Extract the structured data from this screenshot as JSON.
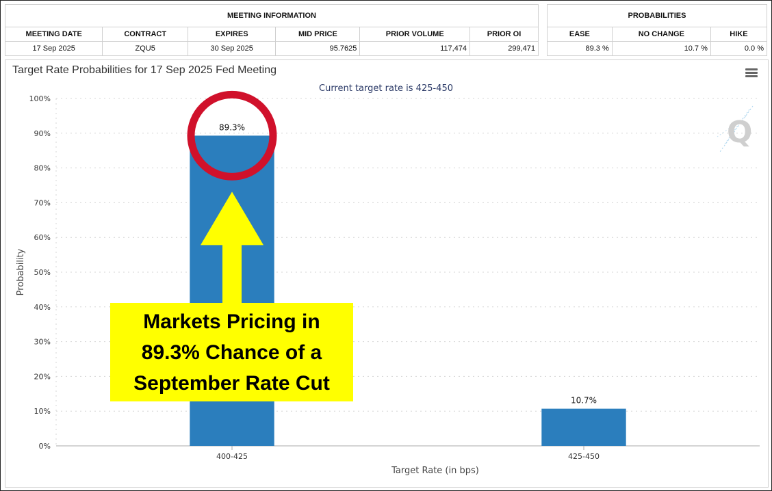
{
  "meeting_info": {
    "header": "MEETING INFORMATION",
    "columns": [
      "MEETING DATE",
      "CONTRACT",
      "EXPIRES",
      "MID PRICE",
      "PRIOR VOLUME",
      "PRIOR OI"
    ],
    "row": [
      "17 Sep 2025",
      "ZQU5",
      "30 Sep 2025",
      "95.7625",
      "117,474",
      "299,471"
    ]
  },
  "probabilities": {
    "header": "PROBABILITIES",
    "columns": [
      "EASE",
      "NO CHANGE",
      "HIKE"
    ],
    "row": [
      "89.3 %",
      "10.7 %",
      "0.0 %"
    ]
  },
  "chart": {
    "menu_icon": "hamburger-menu-icon",
    "logo_icon": "q-logo-icon",
    "bar_color": "#2b7ebd",
    "highlight_circle_color": "#d0112b",
    "arrow_color": "#ffff00"
  },
  "callout": {
    "lines": [
      "Markets Pricing in",
      "89.3% Chance of a",
      "September Rate Cut"
    ]
  },
  "chart_data": {
    "type": "bar",
    "title": "Target Rate Probabilities for 17 Sep 2025 Fed Meeting",
    "subtitle": "Current target rate is 425-450",
    "xlabel": "Target Rate (in bps)",
    "ylabel": "Probability",
    "categories": [
      "400-425",
      "425-450"
    ],
    "values": [
      89.3,
      10.7
    ],
    "data_labels": [
      "89.3%",
      "10.7%"
    ],
    "ylim": [
      0,
      100
    ],
    "yticks": [
      0,
      10,
      20,
      30,
      40,
      50,
      60,
      70,
      80,
      90,
      100
    ],
    "ytick_labels": [
      "0%",
      "10%",
      "20%",
      "30%",
      "40%",
      "50%",
      "60%",
      "70%",
      "80%",
      "90%",
      "100%"
    ],
    "grid": true,
    "legend": "none"
  }
}
